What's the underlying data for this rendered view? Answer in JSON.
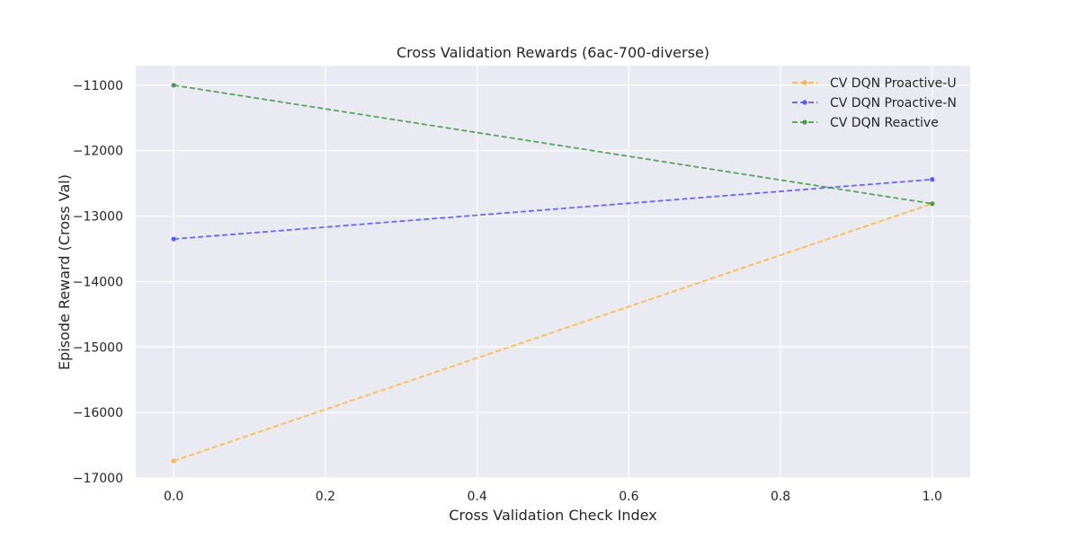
{
  "chart_data": {
    "type": "line",
    "title": "Cross Validation Rewards (6ac-700-diverse)",
    "xlabel": "Cross Validation Check Index",
    "ylabel": "Episode Reward (Cross Val)",
    "xlim": [
      -0.05,
      1.05
    ],
    "ylim": [
      -17000,
      -10700
    ],
    "xticks": [
      0.0,
      0.2,
      0.4,
      0.6,
      0.8,
      1.0
    ],
    "xtick_labels": [
      "0.0",
      "0.2",
      "0.4",
      "0.6",
      "0.8",
      "1.0"
    ],
    "yticks": [
      -17000,
      -16000,
      -15000,
      -14000,
      -13000,
      -12000,
      -11000
    ],
    "ytick_labels": [
      "−17000",
      "−16000",
      "−15000",
      "−14000",
      "−13000",
      "−12000",
      "−11000"
    ],
    "grid": true,
    "legend_position": "top-right",
    "x": [
      0,
      1
    ],
    "series": [
      {
        "name": "CV DQN Proactive-U",
        "color": "#ffb347",
        "values": [
          -16740,
          -12810
        ]
      },
      {
        "name": "CV DQN Proactive-N",
        "color": "#5b5bf0",
        "values": [
          -13350,
          -12440
        ]
      },
      {
        "name": "CV DQN Reactive",
        "color": "#4c9a4c",
        "values": [
          -11000,
          -12810
        ]
      }
    ]
  }
}
